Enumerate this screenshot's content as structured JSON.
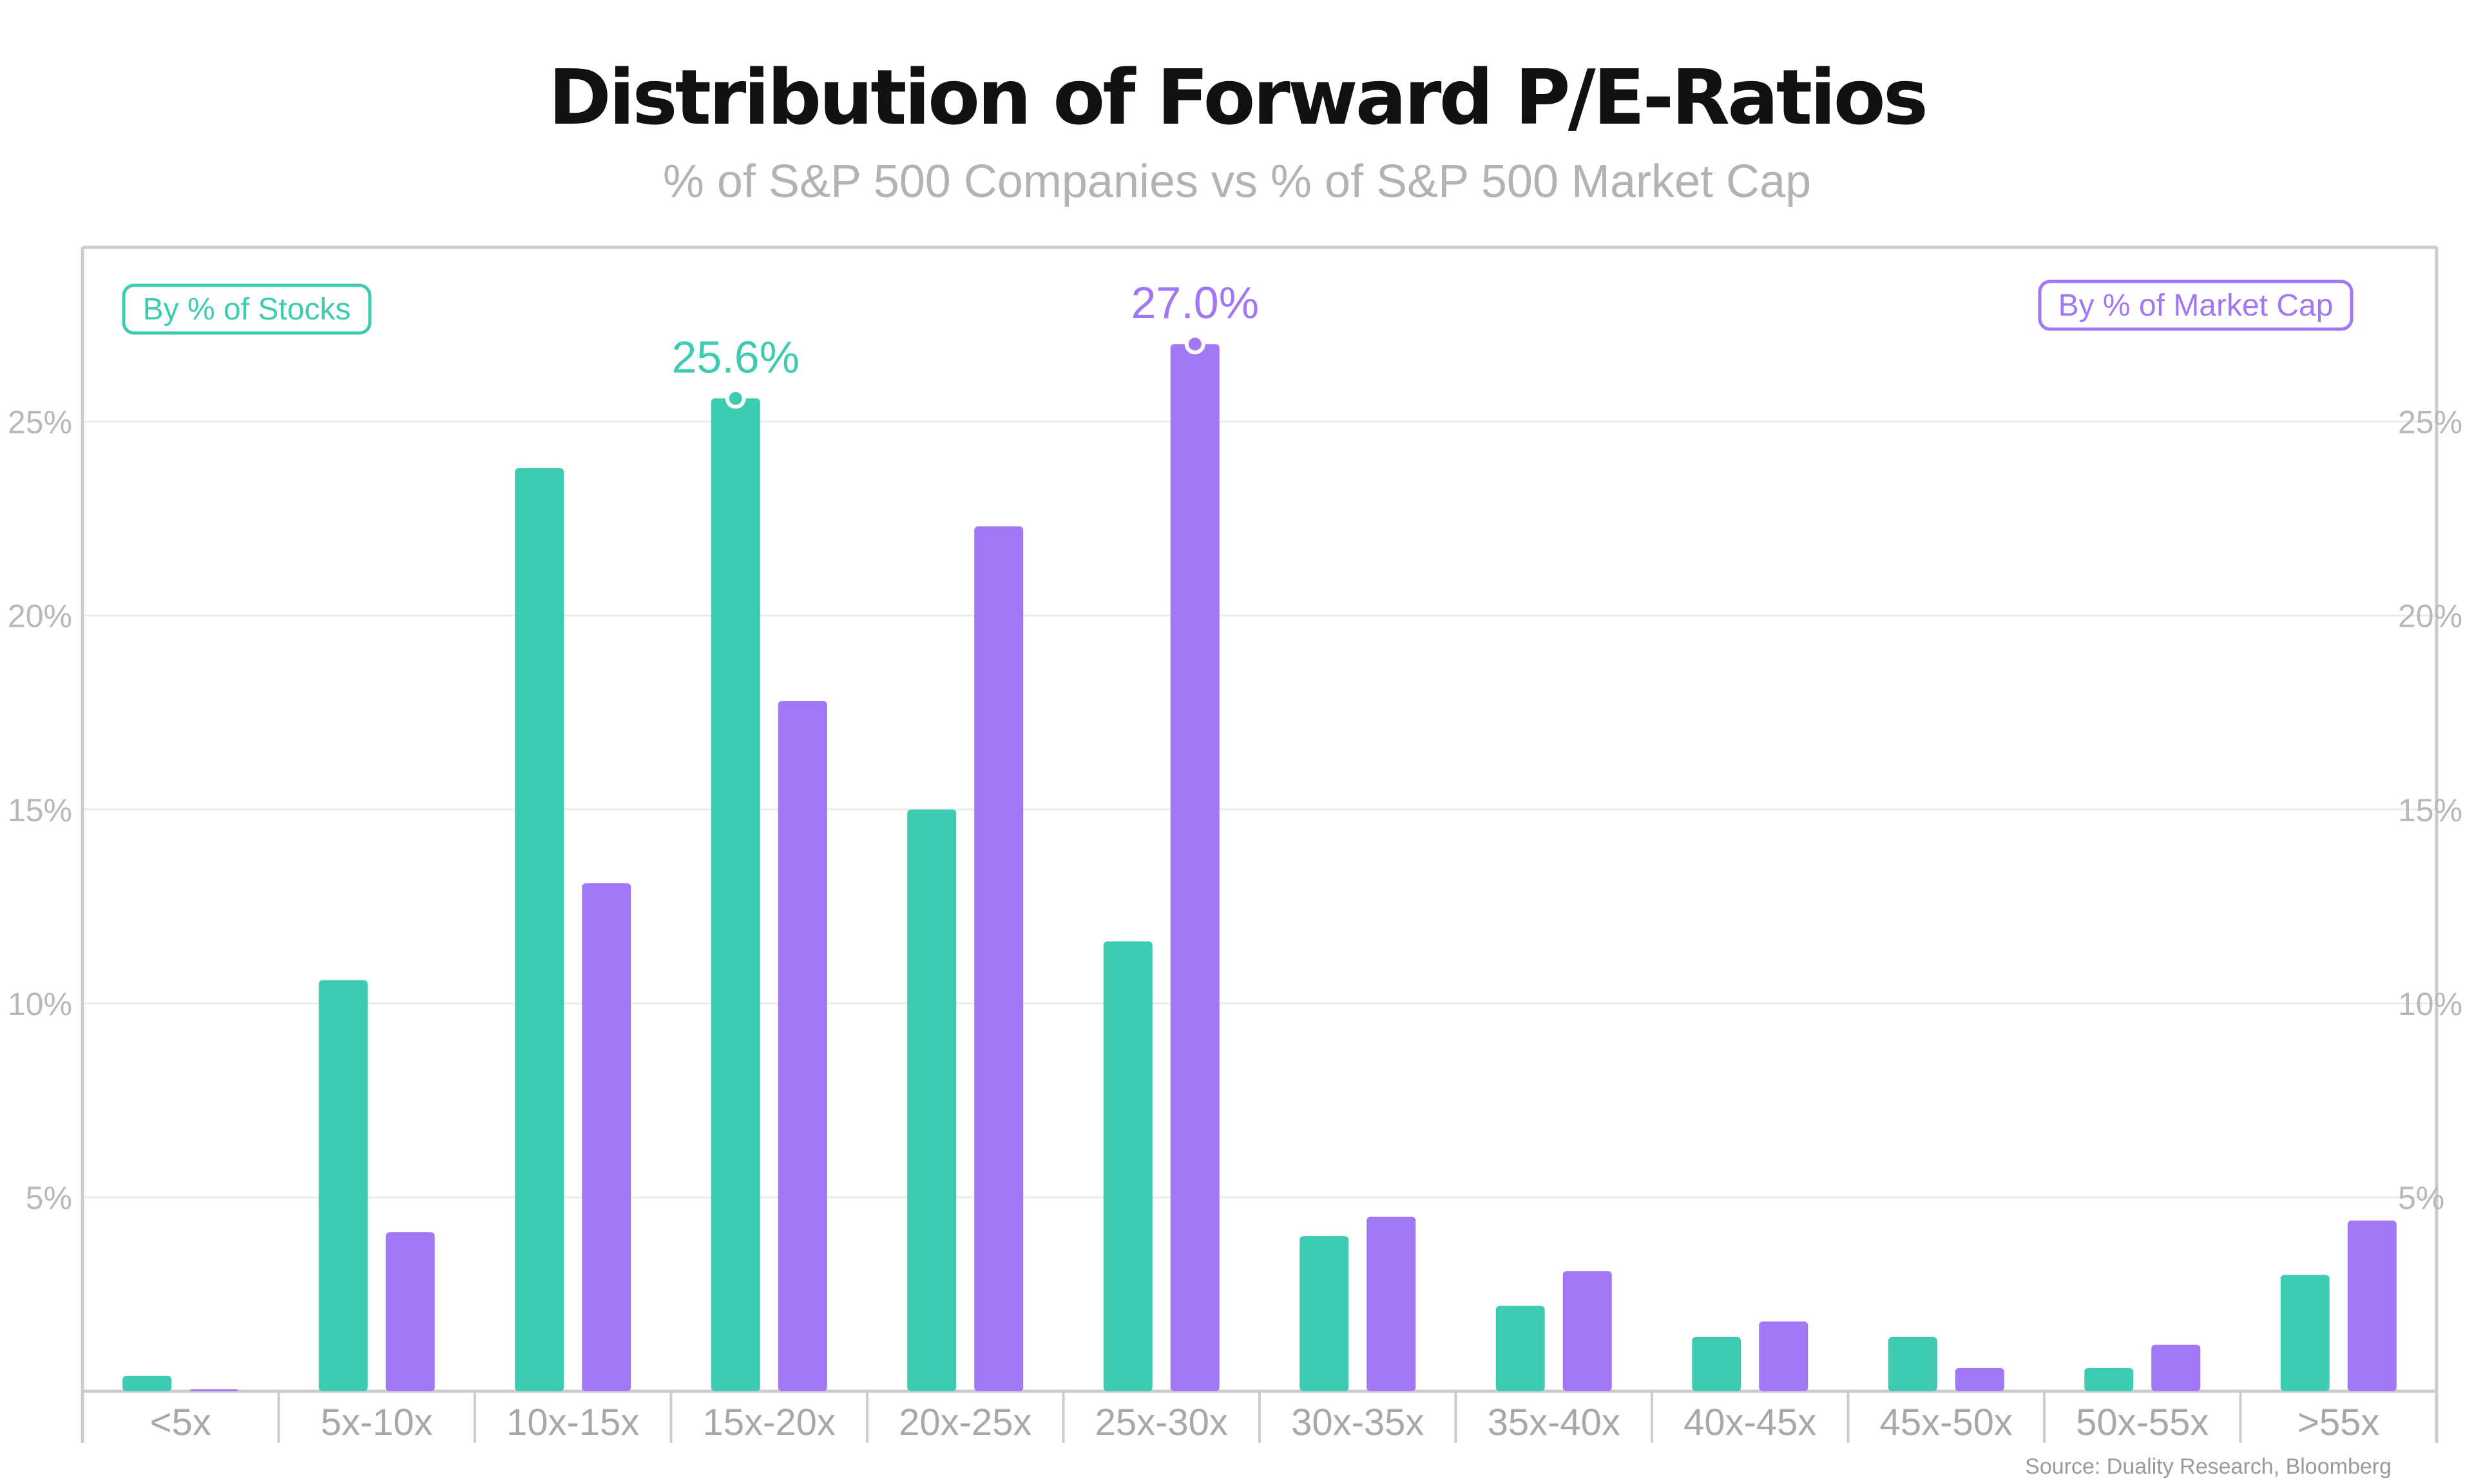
{
  "colors": {
    "stocks": "#3dcbb1",
    "market_cap": "#a077f5",
    "axis": "#cccccc",
    "grid": "#ececec"
  },
  "chart_data": {
    "type": "bar",
    "title": "Distribution of Forward P/E-Ratios",
    "subtitle": "% of S&P 500 Companies vs % of S&P 500 Market Cap",
    "categories": [
      "<5x",
      "5x-10x",
      "10x-15x",
      "15x-20x",
      "20x-25x",
      "25x-30x",
      "30x-35x",
      "35x-40x",
      "40x-45x",
      "45x-50x",
      "50x-55x",
      ">55x"
    ],
    "series": [
      {
        "name": "By % of Stocks",
        "color": "#3dcbb1",
        "values": [
          0.4,
          10.6,
          23.8,
          25.6,
          15.0,
          11.6,
          4.0,
          2.2,
          1.4,
          1.4,
          0.6,
          3.0
        ]
      },
      {
        "name": "By % of Market Cap",
        "color": "#a077f5",
        "values": [
          0.05,
          4.1,
          13.1,
          17.8,
          22.3,
          27.0,
          4.5,
          3.1,
          1.8,
          0.6,
          1.2,
          4.4
        ]
      }
    ],
    "ylim": [
      0,
      30
    ],
    "y_ticks": [
      5,
      10,
      15,
      20,
      25
    ],
    "y_tick_labels": [
      "5%",
      "10%",
      "15%",
      "20%",
      "25%"
    ],
    "grid": true,
    "legend": {
      "stocks_position": "top-left",
      "market_cap_position": "top-right"
    },
    "annotations": [
      {
        "series": 0,
        "category": "15x-20x",
        "label": "25.6%"
      },
      {
        "series": 1,
        "category": "25x-30x",
        "label": "27.0%"
      }
    ],
    "source": "Source: Duality Research, Bloomberg"
  }
}
